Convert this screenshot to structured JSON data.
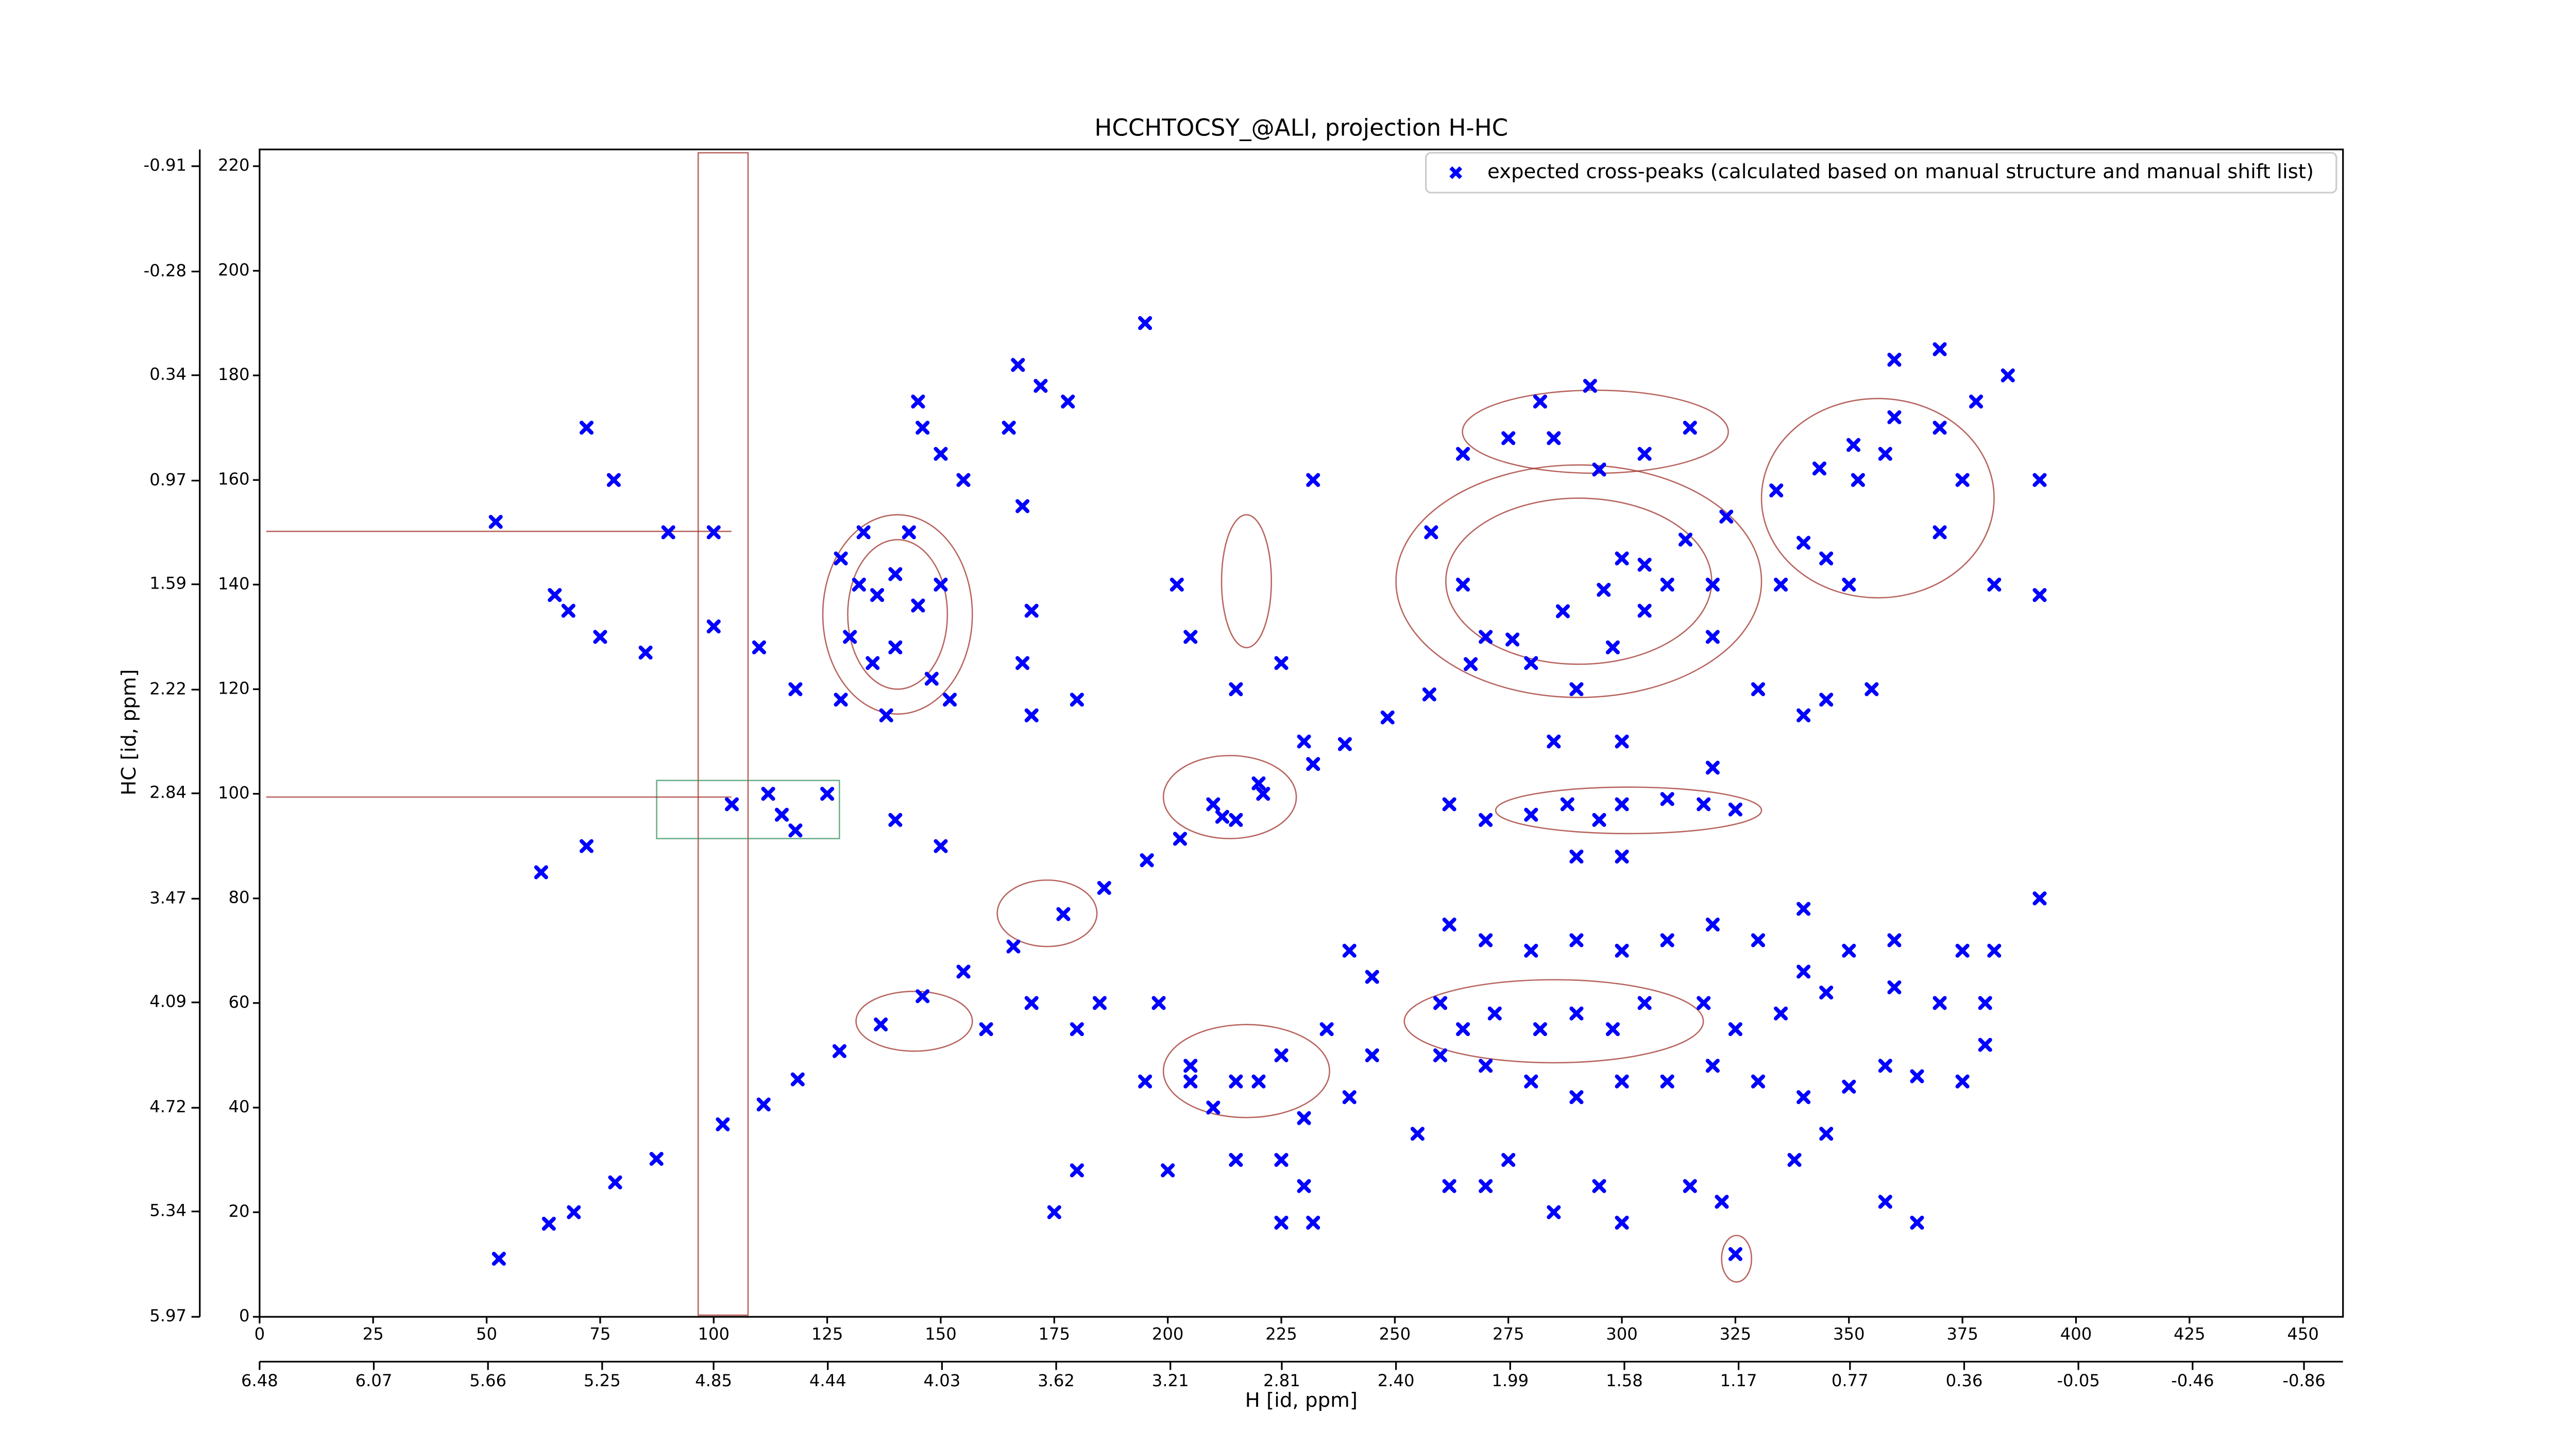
{
  "chart_data": {
    "type": "scatter",
    "title": "HCCHTOCSY_@ALI, projection H-HC",
    "xlabel": "H [id, ppm]",
    "ylabel": "HC [id, ppm]",
    "xlim": [
      0,
      458.8
    ],
    "xticks": [
      0,
      25,
      50,
      75,
      100,
      125,
      150,
      175,
      200,
      225,
      250,
      275,
      300,
      325,
      350,
      375,
      400,
      425,
      450
    ],
    "ylim": [
      0,
      223.2
    ],
    "yticks": [
      0,
      20,
      40,
      60,
      80,
      100,
      120,
      140,
      160,
      180,
      200,
      220
    ],
    "x2lim": [
      6.48,
      -1.0
    ],
    "x2ticks": [
      6.48,
      6.07,
      5.66,
      5.25,
      4.85,
      4.44,
      4.03,
      3.62,
      3.21,
      2.81,
      {
        "value": 2.4,
        "label": "2.40"
      },
      1.99,
      1.58,
      1.17,
      0.77,
      0.36,
      -0.05,
      -0.46,
      -0.86
    ],
    "y2lim": [
      5.97,
      -1.01
    ],
    "y2ticks": [
      -0.91,
      -0.28,
      0.34,
      0.97,
      1.59,
      2.22,
      2.84,
      3.47,
      4.09,
      4.72,
      5.34,
      5.97
    ],
    "legend": "upper right",
    "series": [
      {
        "name": "expected cross-peaks (calculated based on manual structure and manual shift list)",
        "color": "#0000ff",
        "x": [
          52.7,
          63.7,
          69.2,
          78.3,
          87.4,
          102,
          111,
          118.5,
          127.7,
          136.8,
          146,
          155,
          166,
          177,
          186,
          195.4,
          202.7,
          212,
          221,
          232,
          239,
          248.4,
          257.6,
          266.7,
          275.9,
          287,
          296,
          305,
          314,
          323,
          334,
          343.5,
          351,
          128,
          132,
          136,
          140,
          145,
          150,
          130,
          135,
          140,
          148,
          128,
          138,
          152,
          133,
          143,
          146,
          150,
          145,
          155,
          172,
          167,
          178,
          165,
          168,
          170,
          168,
          170,
          180,
          195,
          232,
          52,
          78,
          72,
          65,
          68,
          75,
          85,
          90,
          62,
          72,
          100,
          100,
          110,
          118,
          104,
          112,
          115,
          118,
          125,
          140,
          150,
          202,
          205,
          215,
          225,
          215,
          210,
          220,
          230,
          198,
          205,
          210,
          220,
          230,
          240,
          245,
          232,
          225,
          258,
          265,
          275,
          285,
          295,
          305,
          315,
          282,
          293,
          265,
          270,
          280,
          290,
          300,
          305,
          310,
          320,
          320,
          298,
          330,
          335,
          340,
          345,
          350,
          352,
          358,
          360,
          370,
          375,
          378,
          385,
          392,
          382,
          370,
          355,
          345,
          340,
          392,
          360,
          370,
          262,
          270,
          280,
          288,
          295,
          300,
          310,
          318,
          325,
          290,
          300,
          300,
          285,
          320,
          262,
          270,
          280,
          290,
          300,
          310,
          320,
          330,
          340,
          350,
          360,
          375,
          382,
          380,
          370,
          360,
          345,
          340,
          335,
          325,
          318,
          305,
          298,
          290,
          282,
          272,
          265,
          260,
          270,
          280,
          290,
          300,
          310,
          320,
          330,
          340,
          350,
          358,
          365,
          375,
          380,
          392,
          255,
          262,
          270,
          275,
          285,
          295,
          300,
          315,
          322,
          338,
          345,
          358,
          365,
          325,
          160,
          170,
          180,
          185,
          195,
          205,
          215,
          225,
          235,
          245,
          240,
          230,
          175,
          180,
          200,
          215,
          225,
          260
        ],
        "values": [
          11.1,
          17.8,
          20,
          25.7,
          30.2,
          36.8,
          40.6,
          45.4,
          50.8,
          55.9,
          61.3,
          66,
          70.8,
          77,
          82,
          87.3,
          91.4,
          95.6,
          100,
          105.7,
          109.5,
          114.6,
          119,
          124.8,
          129.5,
          134.9,
          139,
          143.8,
          148.6,
          153,
          158,
          162.2,
          166.7,
          145,
          140,
          138,
          142,
          136,
          140,
          130,
          125,
          128,
          122,
          118,
          115,
          118,
          150,
          150,
          170,
          165,
          175,
          160,
          178,
          182,
          175,
          170,
          155,
          135,
          125,
          115,
          118,
          190,
          160,
          152,
          160,
          170,
          138,
          135,
          130,
          127,
          150,
          85,
          90,
          150,
          132,
          128,
          120,
          98,
          100,
          96,
          93,
          100,
          95,
          90,
          140,
          130,
          120,
          125,
          95,
          98,
          102,
          110,
          60,
          45,
          40,
          45,
          38,
          42,
          50,
          18,
          30,
          150,
          165,
          168,
          168,
          162,
          165,
          170,
          175,
          178,
          140,
          130,
          125,
          120,
          145,
          135,
          140,
          130,
          140,
          128,
          120,
          140,
          148,
          145,
          140,
          160,
          165,
          172,
          170,
          160,
          175,
          180,
          160,
          140,
          150,
          120,
          118,
          115,
          138,
          183,
          185,
          98,
          95,
          96,
          98,
          95,
          98,
          99,
          98,
          97,
          88,
          88,
          110,
          110,
          105,
          75,
          72,
          70,
          72,
          70,
          72,
          75,
          72,
          78,
          70,
          72,
          70,
          70,
          60,
          60,
          63,
          62,
          66,
          58,
          55,
          60,
          60,
          55,
          58,
          55,
          58,
          55,
          50,
          48,
          45,
          42,
          45,
          45,
          48,
          45,
          42,
          44,
          48,
          46,
          45,
          52,
          80,
          35,
          25,
          25,
          30,
          20,
          25,
          18,
          25,
          22,
          30,
          35,
          22,
          18,
          12,
          55,
          60,
          55,
          60,
          45,
          48,
          45,
          50,
          55,
          65,
          70,
          25,
          20,
          28,
          28,
          30,
          18,
          60
        ]
      }
    ]
  }
}
